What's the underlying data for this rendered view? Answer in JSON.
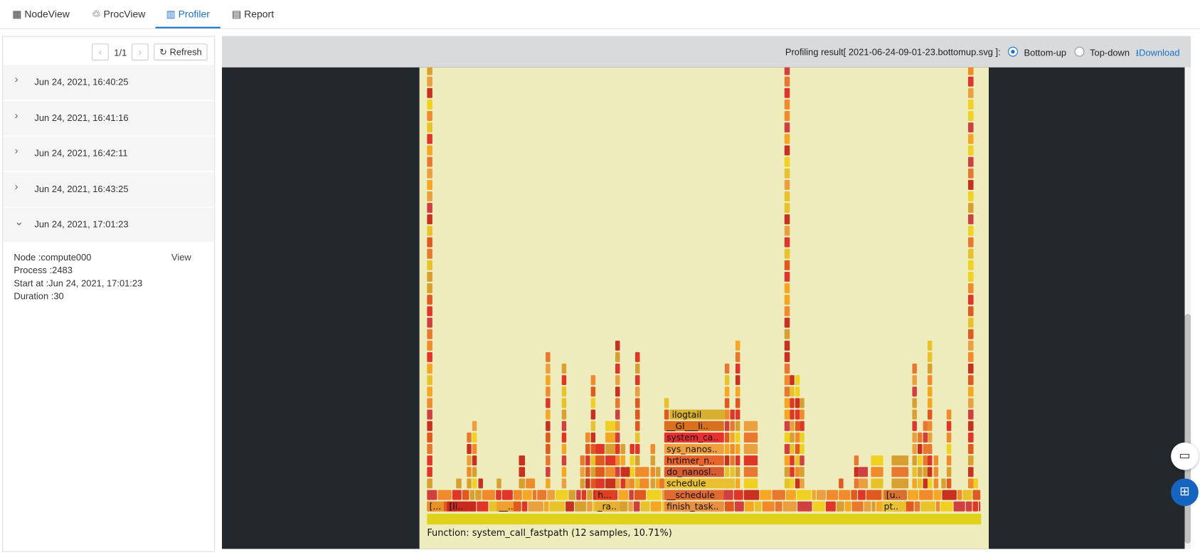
{
  "tabs": [
    "NodeView",
    "ProcView",
    "Profiler",
    "Report"
  ],
  "pager": {
    "page": "1/1",
    "refresh": "Refresh"
  },
  "sessions": [
    "Jun 24, 2021, 16:40:25",
    "Jun 24, 2021, 16:41:16",
    "Jun 24, 2021, 16:42:11",
    "Jun 24, 2021, 16:43:25",
    "Jun 24, 2021, 17:01:23"
  ],
  "details": {
    "node": "Node :compute000",
    "view": "View",
    "process": "Process :2483",
    "start": "Start at :Jun 24, 2021, 17:01:23",
    "duration": "Duration :30"
  },
  "toolbar": {
    "result": "Profiling result[ 2021-06-24-09-01-23.bottomup.svg ]:",
    "bottom_up": "Bottom-up",
    "top_down": "Top-down",
    "download": "Download"
  },
  "flamegraph": {
    "frames": [
      "[...",
      "[li..",
      "__..",
      "h...",
      "_ra..",
      "[u..",
      "pt..",
      "finish_task..",
      "__schedule",
      "schedule",
      "do_nanosl..",
      "hrtimer_n..",
      "sys_nanos..",
      "system_ca..",
      "__GI___li..",
      "ilogtail"
    ],
    "status": "Function: system_call_fastpath (12 samples, 10.71%)"
  }
}
